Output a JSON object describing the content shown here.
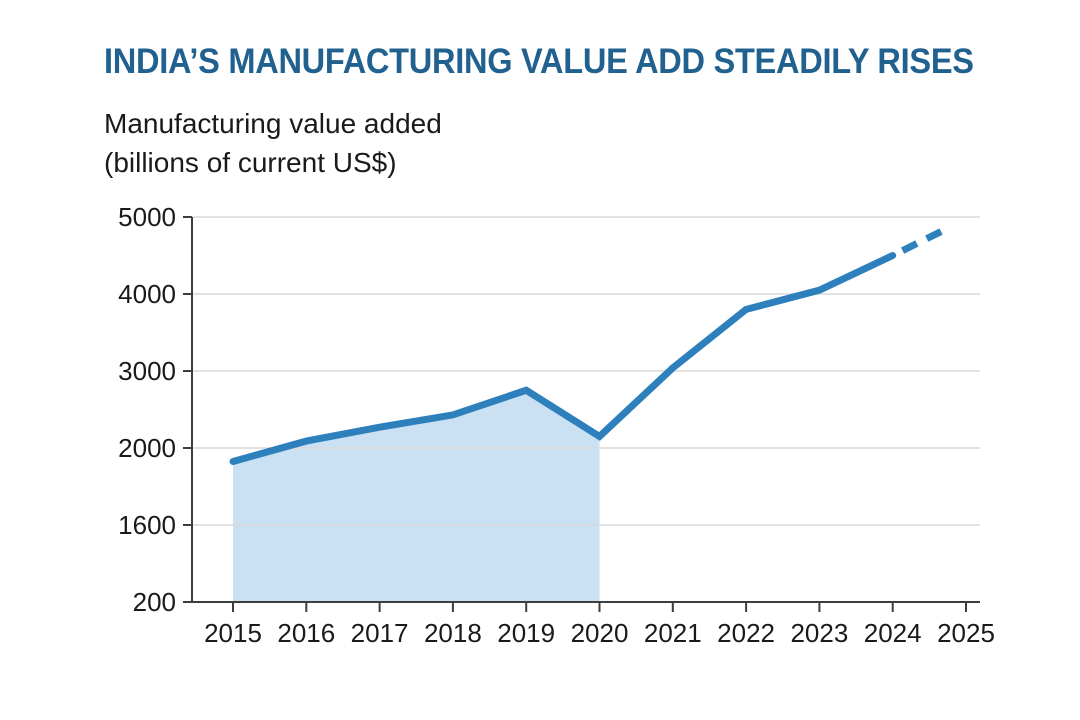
{
  "header": {
    "title": "INDIA’S MANUFACTURING VALUE ADD STEADILY RISES",
    "subtitle_line1": "Manufacturing value added",
    "subtitle_line2": "(billions of current US$)"
  },
  "colors": {
    "title": "#20618f",
    "line": "#2e80bd",
    "area_fill": "#c9e1f2",
    "grid": "#d9d9d9",
    "axis": "#3d3d3d",
    "tick_text": "#1a1a1a",
    "background": "#ffffff"
  },
  "chart_data": {
    "type": "area",
    "title": "INDIA’S MANUFACTURING VALUE ADD STEADILY RISES",
    "ylabel": "Manufacturing value added (billions of current US$)",
    "xlabel": "",
    "legend": "none",
    "grid": "horizontal only",
    "x": [
      2015,
      2016,
      2017,
      2018,
      2019,
      2020,
      2021,
      2022,
      2023,
      2024
    ],
    "values": [
      1930,
      2090,
      2270,
      2430,
      2750,
      2150,
      3040,
      3800,
      4050,
      4500
    ],
    "projection": {
      "style": "dashed",
      "x": [
        2024,
        2024.68
      ],
      "values": [
        4500,
        4820
      ]
    },
    "area_fill_x_range": [
      2015,
      2020
    ],
    "x_tick_labels": [
      "2015",
      "2016",
      "2017",
      "2018",
      "2019",
      "2020",
      "2021",
      "2022",
      "2023",
      "2024",
      "2025"
    ],
    "x_tick_values": [
      2015,
      2016,
      2017,
      2018,
      2019,
      2020,
      2021,
      2022,
      2023,
      2024,
      2025
    ],
    "y_tick_labels": [
      "200",
      "1600",
      "2000",
      "3000",
      "4000",
      "5000"
    ],
    "y_tick_values": [
      200,
      1600,
      2000,
      3000,
      4000,
      5000
    ],
    "y_axis_scale": "non-linear: tick values 200,1600,2000,3000,4000,5000 drawn at even spacing",
    "xlim": [
      2015,
      2025
    ]
  }
}
